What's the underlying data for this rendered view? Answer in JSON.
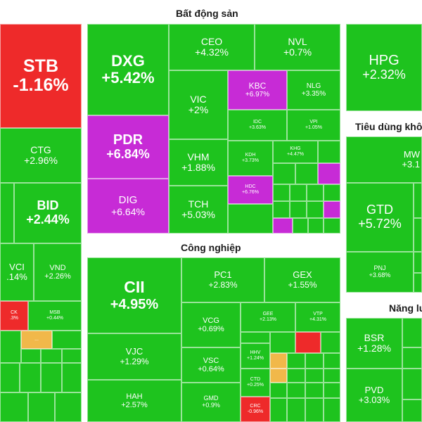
{
  "sections": {
    "real_estate": "Bất động sản",
    "industrial": "Công nghiệp",
    "consumer": "Tiêu dùng khô",
    "energy": "Năng lư"
  },
  "colors": {
    "up": "#1ec31e",
    "down": "#ee2a2a",
    "ceiling": "#c72bd6",
    "reference": "#f1b84a"
  },
  "tiles": {
    "stb": {
      "symbol": "STB",
      "change": "-1.16%"
    },
    "ctg": {
      "symbol": "CTG",
      "change": "+2.96%"
    },
    "bid": {
      "symbol": "BID",
      "change": "+2.44%"
    },
    "vci": {
      "symbol": "VCI",
      "change": ".14%"
    },
    "vnd": {
      "symbol": "VND",
      "change": "+2.26%"
    },
    "ck": {
      "symbol": "CK",
      "change": ".3%"
    },
    "msb": {
      "symbol": "MSB",
      "change": "+0.44%"
    },
    "dots": {
      "symbol": "..."
    },
    "dxg": {
      "symbol": "DXG",
      "change": "+5.42%"
    },
    "ceo": {
      "symbol": "CEO",
      "change": "+4.32%"
    },
    "nvl": {
      "symbol": "NVL",
      "change": "+0.7%"
    },
    "vic": {
      "symbol": "VIC",
      "change": "+2%"
    },
    "kbc": {
      "symbol": "KBC",
      "change": "+6.97%"
    },
    "nlg": {
      "symbol": "NLG",
      "change": "+3.35%"
    },
    "idc": {
      "symbol": "IDC",
      "change": "+3.63%"
    },
    "vpi": {
      "symbol": "VPI",
      "change": "+1.05%"
    },
    "pdr": {
      "symbol": "PDR",
      "change": "+6.84%"
    },
    "vhm": {
      "symbol": "VHM",
      "change": "+1.88%"
    },
    "kdh": {
      "symbol": "KDH",
      "change": "+3.73%"
    },
    "khg": {
      "symbol": "KHG",
      "change": "+4.47%"
    },
    "dig": {
      "symbol": "DIG",
      "change": "+6.64%"
    },
    "tch": {
      "symbol": "TCH",
      "change": "+5.03%"
    },
    "hdc": {
      "symbol": "HDC",
      "change": "+6.76%"
    },
    "hpg": {
      "symbol": "HPG",
      "change": "+2.32%"
    },
    "mwg": {
      "symbol": "MW",
      "change": "+3.1"
    },
    "gtd": {
      "symbol": "GTD",
      "change": "+5.72%"
    },
    "pnj": {
      "symbol": "PNJ",
      "change": "+3.68%"
    },
    "cii": {
      "symbol": "CII",
      "change": "+4.95%"
    },
    "pc1": {
      "symbol": "PC1",
      "change": "+2.83%"
    },
    "gex": {
      "symbol": "GEX",
      "change": "+1.55%"
    },
    "vcg": {
      "symbol": "VCG",
      "change": "+0.69%"
    },
    "gee": {
      "symbol": "GEE",
      "change": "+2.13%"
    },
    "vtp": {
      "symbol": "VTP",
      "change": "+4.31%"
    },
    "vjc": {
      "symbol": "VJC",
      "change": "+1.29%"
    },
    "vsc": {
      "symbol": "VSC",
      "change": "+0.64%"
    },
    "hhv": {
      "symbol": "HHV",
      "change": "+1.24%"
    },
    "ctd": {
      "symbol": "CTD",
      "change": "+0.25%"
    },
    "hah": {
      "symbol": "HAH",
      "change": "+2.57%"
    },
    "gmd": {
      "symbol": "GMD",
      "change": "+0.9%"
    },
    "crc": {
      "symbol": "CRC",
      "change": "-0.96%"
    },
    "bsr": {
      "symbol": "BSR",
      "change": "+1.28%"
    },
    "pvd": {
      "symbol": "PVD",
      "change": "+3.03%"
    }
  }
}
